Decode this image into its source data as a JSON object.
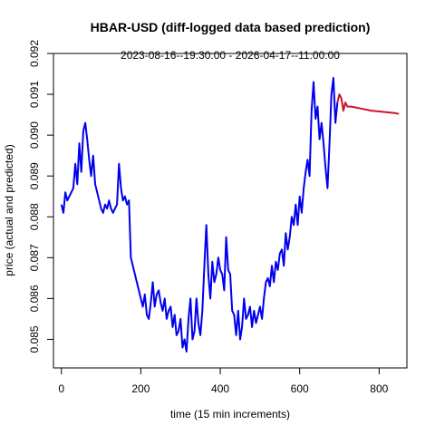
{
  "chart_data": {
    "type": "line",
    "title": "HBAR-USD (diff-logged data based prediction)",
    "subtitle": "2023-08-16--19:30:00  -  2026-04-17--11:00:00",
    "xlabel": "time (15 min increments)",
    "ylabel": "price (actual and predicted)",
    "xlim": [
      -20,
      870
    ],
    "ylim": [
      0.0843,
      0.092
    ],
    "x_ticks": [
      0,
      200,
      400,
      600,
      800
    ],
    "y_ticks": [
      0.085,
      0.086,
      0.087,
      0.088,
      0.089,
      0.09,
      0.091,
      0.092
    ],
    "x_tick_labels": [
      "0",
      "200",
      "400",
      "600",
      "800"
    ],
    "y_tick_labels": [
      "0.085",
      "0.086",
      "0.087",
      "0.088",
      "0.089",
      "0.090",
      "0.091",
      "0.092"
    ],
    "colors": {
      "actual": "#0000ee",
      "predicted": "#cc1133",
      "axis": "#000000"
    },
    "series": [
      {
        "key": "actual",
        "x": [
          0,
          5,
          10,
          15,
          20,
          25,
          30,
          35,
          40,
          45,
          50,
          55,
          60,
          65,
          70,
          75,
          80,
          85,
          90,
          95,
          100,
          105,
          110,
          115,
          120,
          125,
          130,
          135,
          140,
          145,
          150,
          155,
          160,
          165,
          170,
          175,
          180,
          185,
          190,
          195,
          200,
          205,
          210,
          215,
          220,
          225,
          230,
          235,
          240,
          245,
          250,
          255,
          260,
          265,
          270,
          275,
          280,
          285,
          290,
          295,
          300,
          305,
          310,
          315,
          320,
          325,
          330,
          335,
          340,
          345,
          350,
          355,
          360,
          365,
          370,
          375,
          380,
          385,
          390,
          395,
          400,
          405,
          410,
          415,
          420,
          425,
          430,
          435,
          440,
          445,
          450,
          455,
          460,
          465,
          470,
          475,
          480,
          485,
          490,
          495,
          500,
          505,
          510,
          515,
          520,
          525,
          530,
          535,
          540,
          545,
          550,
          555,
          560,
          565,
          570,
          575,
          580,
          585,
          590,
          595,
          600,
          605,
          610,
          615,
          620,
          625,
          630,
          635,
          640,
          645,
          650,
          655,
          660,
          665,
          670,
          675,
          680,
          685,
          690,
          695
        ],
        "y": [
          0.0883,
          0.0881,
          0.0886,
          0.0884,
          0.0885,
          0.0886,
          0.0887,
          0.0893,
          0.0888,
          0.0898,
          0.0891,
          0.0901,
          0.0903,
          0.0899,
          0.0894,
          0.089,
          0.0895,
          0.0888,
          0.0886,
          0.0884,
          0.0882,
          0.0881,
          0.0883,
          0.0882,
          0.0884,
          0.0882,
          0.0881,
          0.0882,
          0.0883,
          0.0893,
          0.0887,
          0.0884,
          0.0885,
          0.0883,
          0.0884,
          0.087,
          0.0868,
          0.0866,
          0.0864,
          0.0862,
          0.086,
          0.0858,
          0.0861,
          0.0856,
          0.0855,
          0.0859,
          0.0864,
          0.0858,
          0.0861,
          0.0862,
          0.0859,
          0.0857,
          0.086,
          0.0855,
          0.0857,
          0.0858,
          0.0853,
          0.0856,
          0.0851,
          0.0852,
          0.0855,
          0.0848,
          0.085,
          0.0847,
          0.0855,
          0.086,
          0.085,
          0.0852,
          0.086,
          0.0854,
          0.0851,
          0.0857,
          0.0868,
          0.0878,
          0.0866,
          0.086,
          0.0869,
          0.0864,
          0.0866,
          0.087,
          0.0867,
          0.0866,
          0.0862,
          0.0875,
          0.0867,
          0.0866,
          0.0857,
          0.0856,
          0.0851,
          0.0857,
          0.085,
          0.0853,
          0.086,
          0.0855,
          0.0856,
          0.0858,
          0.0853,
          0.0857,
          0.0854,
          0.0856,
          0.0858,
          0.0855,
          0.086,
          0.0864,
          0.0865,
          0.0863,
          0.0868,
          0.0864,
          0.0869,
          0.0867,
          0.0871,
          0.0872,
          0.0868,
          0.0876,
          0.0872,
          0.0875,
          0.088,
          0.0878,
          0.0883,
          0.0878,
          0.0885,
          0.0881,
          0.0887,
          0.0891,
          0.0894,
          0.089,
          0.0906,
          0.0913,
          0.0904,
          0.0907,
          0.0899,
          0.0903,
          0.0898,
          0.0892,
          0.0887,
          0.0898,
          0.091,
          0.0914,
          0.0903,
          0.0908
        ]
      },
      {
        "key": "predicted",
        "x": [
          695,
          700,
          705,
          710,
          715,
          720,
          730,
          740,
          760,
          780,
          800,
          820,
          840,
          850
        ],
        "y": [
          0.0908,
          0.091,
          0.0909,
          0.0906,
          0.0908,
          0.0907,
          0.0907,
          0.09068,
          0.09064,
          0.0906,
          0.09058,
          0.09056,
          0.09054,
          0.09052
        ]
      }
    ]
  }
}
